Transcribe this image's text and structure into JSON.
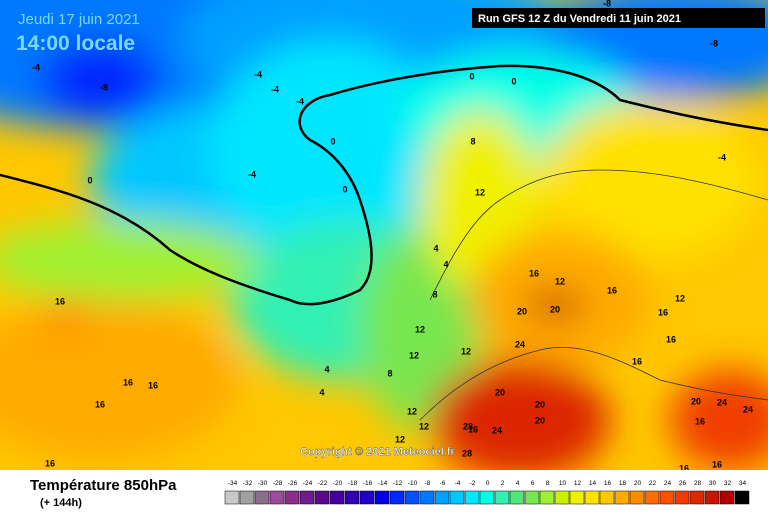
{
  "header": {
    "date": "Jeudi 17 juin 2021",
    "time": "14:00 locale",
    "run": "Run GFS 12 Z du Vendredi 11 juin 2021"
  },
  "copyright": "Copyright © 2021 Meteociel.fr",
  "footer": {
    "title": "Température 850hPa",
    "lead": "(+ 144h)"
  },
  "scale": {
    "labels": [
      -34,
      -32,
      -30,
      -28,
      -26,
      -24,
      -22,
      -20,
      -18,
      -16,
      -14,
      -12,
      -10,
      -8,
      -6,
      -4,
      -2,
      0,
      2,
      4,
      6,
      8,
      10,
      12,
      14,
      16,
      18,
      20,
      22,
      24,
      26,
      28,
      30,
      32,
      34
    ],
    "colors": [
      "#c8c8c8",
      "#a0a0a0",
      "#8c6e8c",
      "#9b4b9b",
      "#8c2d8c",
      "#6e1e8c",
      "#5a0a8c",
      "#4600a0",
      "#3200b4",
      "#1e00c8",
      "#0000e6",
      "#0028ff",
      "#0050ff",
      "#0078ff",
      "#00a0ff",
      "#00c8ff",
      "#00e6ff",
      "#00ffe6",
      "#32f0b4",
      "#50e678",
      "#78e650",
      "#a0f032",
      "#c8f000",
      "#f0f000",
      "#ffe100",
      "#ffc800",
      "#ffaa00",
      "#ff8c00",
      "#ff6e00",
      "#ff5000",
      "#f03c00",
      "#dc2800",
      "#c81400",
      "#b40000",
      "#000000"
    ]
  },
  "contour_labels": [
    -8,
    -4,
    -4,
    -4,
    -4,
    -4,
    -8,
    -8,
    0,
    0,
    0,
    0,
    -4,
    0,
    8,
    12,
    4,
    4,
    8,
    12,
    16,
    16,
    16,
    12,
    12,
    16,
    12,
    20,
    20,
    16,
    12,
    16,
    16,
    16,
    4,
    4,
    8,
    12,
    12,
    12,
    16,
    20,
    24,
    28,
    20,
    20,
    24,
    20,
    24,
    24,
    16,
    16,
    16,
    28,
    16,
    16
  ]
}
